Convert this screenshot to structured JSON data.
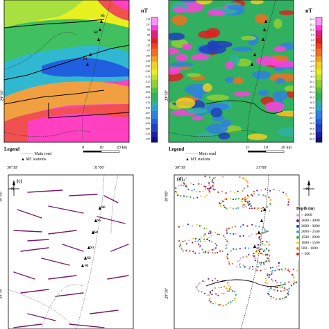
{
  "units": "nT",
  "panel_labels": {
    "c": "(c)",
    "d": "(d)"
  },
  "coords": {
    "lon1": "30°30'",
    "lon2": "31°00'",
    "lat1": "30°00'",
    "lat2": "29°30'"
  },
  "legend": {
    "title": "Legend",
    "road": "Main road",
    "stations": "MT stations"
  },
  "scale": {
    "ticks": [
      "0",
      "10",
      "20"
    ],
    "unit": "km"
  },
  "colorbar_a": [
    "178",
    "157",
    "137",
    "116",
    "96",
    "76",
    "55",
    "35",
    "14",
    "-6",
    "-26",
    "-47",
    "-67",
    "-88",
    "-108",
    "-128",
    "-149",
    "-169",
    "-190",
    "-210",
    "-230",
    "-251",
    "-271",
    "-292",
    "-312",
    "-332",
    "-353",
    "-373",
    "-394",
    "-414",
    "-434",
    "-455",
    "-475",
    "-496",
    "-516",
    "-536",
    "-557",
    "-578",
    "-598",
    "-618",
    "-639",
    "-659",
    "-680",
    "-700",
    "-720",
    "-741",
    "-762",
    "-782"
  ],
  "colorbar_b": [
    "14.2",
    "13.2",
    "12.1",
    "11.0",
    "10.0",
    "9.0",
    "8.0",
    "7.0",
    "5.9",
    "4.9",
    "3.9",
    "2.9",
    "1.8",
    "0.8",
    "-0.2",
    "-1.2",
    "-2.2",
    "-3.2",
    "-4.3",
    "-5.3",
    "-6.3",
    "-7.3",
    "-8.4",
    "-9.4",
    "-10.4",
    "-11.4",
    "-12.4",
    "-13.4",
    "-14.4",
    "-15.5",
    "-16.5",
    "-17.5",
    "-18.5",
    "-19.6",
    "-20.6",
    "-21.6",
    "-22.7",
    "-23.7",
    "-24.7",
    "-25.7",
    "-26.8",
    "-27.8",
    "-28.8",
    "-29.8",
    "-30.8",
    "-31.9",
    "-32.9",
    "-33.9"
  ],
  "stations_a": [
    "S5",
    "S4",
    "S3",
    "S2",
    "S1"
  ],
  "stations_c": [
    "S6",
    "S5",
    "S4",
    "S3",
    "S2",
    "S1"
  ],
  "depth": {
    "title": "Depth (m)",
    "rows": [
      {
        "from": "",
        "op": ">",
        "to": "4000",
        "color": "#d9a0c8"
      },
      {
        "from": "3600",
        "op": "-",
        "to": "4000",
        "color": "#7b1a7b"
      },
      {
        "from": "2600",
        "op": "-",
        "to": "3000",
        "color": "#2040b0"
      },
      {
        "from": "2000",
        "op": "-",
        "to": "2500",
        "color": "#3aa0e0"
      },
      {
        "from": "1500",
        "op": "-",
        "to": "2000",
        "color": "#30b040"
      },
      {
        "from": "1000",
        "op": "-",
        "to": "1500",
        "color": "#f0d020"
      },
      {
        "from": "500",
        "op": "-",
        "to": "1000",
        "color": "#f08020"
      },
      {
        "from": "",
        "op": "<",
        "to": "500",
        "color": "#e02020"
      }
    ]
  }
}
